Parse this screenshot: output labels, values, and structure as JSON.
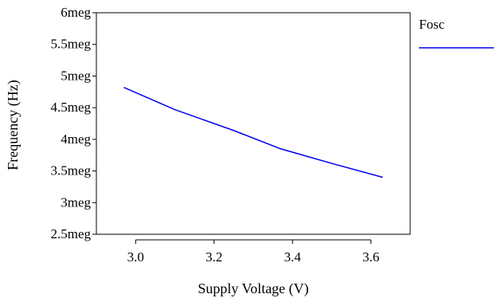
{
  "chart_data": {
    "type": "line",
    "xlabel": "Supply Voltage (V)",
    "ylabel": "Frequency (Hz)",
    "xlim": [
      2.9,
      3.7
    ],
    "ylim": [
      2500000,
      6000000
    ],
    "x_ticks": [
      3.0,
      3.2,
      3.4,
      3.6
    ],
    "x_tick_labels": [
      "3.0",
      "3.2",
      "3.4",
      "3.6"
    ],
    "y_ticks": [
      2500000,
      3000000,
      3500000,
      4000000,
      4500000,
      5000000,
      5500000,
      6000000
    ],
    "y_tick_labels": [
      "2.5meg",
      "3meg",
      "3.5meg",
      "4meg",
      "4.5meg",
      "5meg",
      "5.5meg",
      "6meg"
    ],
    "grid": false,
    "legend_position": "right",
    "series": [
      {
        "name": "Fosc",
        "color": "#0000ee",
        "x": [
          2.97,
          3.1,
          3.25,
          3.37,
          3.5,
          3.63
        ],
        "y": [
          4820000,
          4470000,
          4140000,
          3850000,
          3620000,
          3400000
        ]
      }
    ]
  }
}
